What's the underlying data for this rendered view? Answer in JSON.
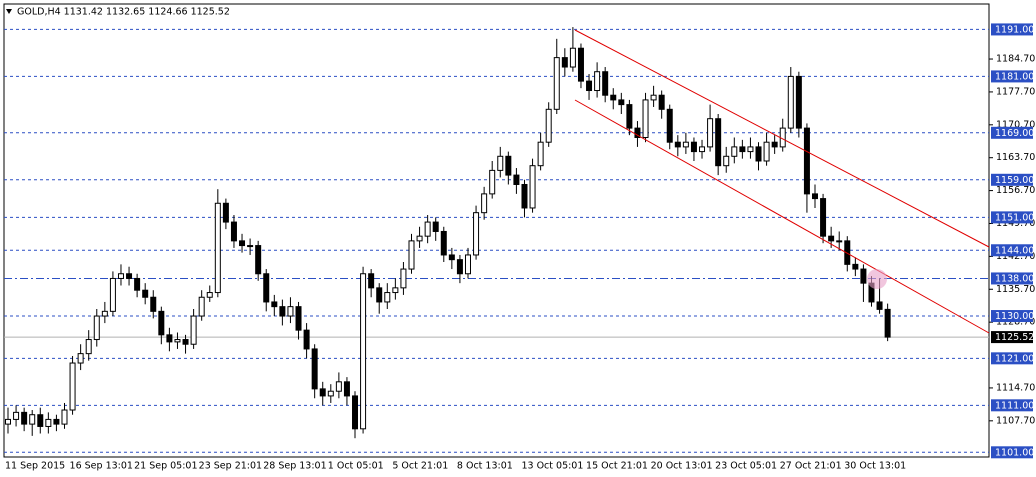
{
  "chart_data": {
    "type": "candlestick",
    "title": "GOLD,H4  1131.42 1132.65 1124.66 1125.52",
    "categories": [
      "11 Sep 2015",
      null,
      null,
      null,
      null,
      null,
      null,
      null,
      "16 Sep 13:01",
      null,
      null,
      null,
      null,
      null,
      null,
      null,
      "21 Sep 05:01",
      null,
      null,
      null,
      null,
      null,
      null,
      null,
      "23 Sep 21:01",
      null,
      null,
      null,
      null,
      null,
      null,
      null,
      "28 Sep 13:01",
      null,
      null,
      null,
      null,
      null,
      null,
      null,
      "1 Oct 05:01",
      null,
      null,
      null,
      null,
      null,
      null,
      null,
      "5 Oct 21:01",
      null,
      null,
      null,
      null,
      null,
      null,
      null,
      "8 Oct 13:01",
      null,
      null,
      null,
      null,
      null,
      null,
      null,
      "13 Oct 05:01",
      null,
      null,
      null,
      null,
      null,
      null,
      null,
      "15 Oct 21:01",
      null,
      null,
      null,
      null,
      null,
      null,
      null,
      "20 Oct 13:01",
      null,
      null,
      null,
      null,
      null,
      null,
      null,
      "23 Oct 05:01",
      null,
      null,
      null,
      null,
      null,
      null,
      null,
      "27 Oct 21:01",
      null,
      null,
      null,
      null,
      null,
      null,
      null,
      "30 Oct 13:01",
      null,
      null,
      null,
      null,
      null
    ],
    "open": [
      1107,
      1108,
      1109.5,
      1107,
      1109,
      1106.5,
      1108,
      1107,
      1110,
      1120,
      1122,
      1125,
      1130,
      1131,
      1138,
      1139,
      1138,
      1135.5,
      1134,
      1131,
      1126,
      1124.5,
      1125,
      1124,
      1130,
      1134,
      1135,
      1154,
      1150,
      1146,
      1145,
      1145,
      1139,
      1133,
      1132,
      1130,
      1132,
      1127,
      1123,
      1114.5,
      1113,
      1114,
      1116,
      1113,
      1106,
      1139,
      1136,
      1133,
      1135,
      1136,
      1140,
      1146,
      1147,
      1150,
      1148,
      1143,
      1142,
      1139,
      1143,
      1152,
      1156,
      1161,
      1164,
      1160,
      1158,
      1153,
      1162,
      1167,
      1174,
      1185,
      1183,
      1187,
      1180,
      1178,
      1182,
      1177,
      1176,
      1175,
      1170,
      1168,
      1176,
      1177,
      1174,
      1167,
      1166,
      1167,
      1165,
      1166,
      1172,
      1162,
      1164,
      1166,
      1165,
      1166,
      1163,
      1167,
      1166,
      1170,
      1181,
      1170,
      1156,
      1155,
      1147,
      1146,
      1146,
      1141,
      1140,
      1137,
      1133,
      1131.42
    ],
    "high": [
      1110.5,
      1111,
      1110.5,
      1110,
      1110.5,
      1109.5,
      1109,
      1111.5,
      1121.5,
      1124,
      1127,
      1131.5,
      1133,
      1139.5,
      1141,
      1140.5,
      1139,
      1137,
      1135.5,
      1132,
      1127.5,
      1126.5,
      1126,
      1131.5,
      1135.5,
      1136.5,
      1157,
      1155,
      1151.5,
      1147.5,
      1146.5,
      1146,
      1140,
      1134.5,
      1133.5,
      1134,
      1133,
      1128.5,
      1124,
      1116,
      1115.5,
      1118,
      1117,
      1114,
      1140.5,
      1140,
      1137,
      1137,
      1138,
      1141.5,
      1147.5,
      1149,
      1151.5,
      1151,
      1149,
      1144.5,
      1143,
      1144.5,
      1153.5,
      1157.5,
      1163,
      1166,
      1165,
      1161.5,
      1159,
      1163.5,
      1169,
      1175.5,
      1189,
      1187,
      1191.5,
      1188,
      1181.5,
      1184,
      1183,
      1178.5,
      1177.5,
      1176,
      1171.5,
      1177.5,
      1179,
      1178,
      1175,
      1168.5,
      1169,
      1168,
      1167.5,
      1175,
      1173,
      1166,
      1168,
      1167.5,
      1168,
      1167,
      1169,
      1168.5,
      1172,
      1183,
      1182,
      1171,
      1158,
      1156,
      1149,
      1148,
      1147,
      1142.5,
      1141,
      1138.5,
      1138,
      1132.65
    ],
    "low": [
      1105,
      1106.5,
      1105.5,
      1104.5,
      1105,
      1105,
      1105.5,
      1106,
      1109,
      1118.5,
      1120.5,
      1123.5,
      1128.5,
      1130,
      1136.5,
      1136.5,
      1134,
      1132.5,
      1129.5,
      1124,
      1122.5,
      1123,
      1122,
      1123,
      1129,
      1133,
      1134,
      1148.5,
      1144.5,
      1143.5,
      1143,
      1137.5,
      1131,
      1130,
      1128,
      1128.5,
      1125,
      1121,
      1112.5,
      1111,
      1111.5,
      1112.5,
      1111,
      1104,
      1105,
      1134,
      1130.5,
      1131.5,
      1133.5,
      1134.5,
      1139,
      1144.5,
      1145.5,
      1146,
      1141.5,
      1140,
      1137,
      1138,
      1142,
      1150.5,
      1155,
      1159.5,
      1158,
      1156,
      1151,
      1152,
      1161,
      1166,
      1173,
      1181,
      1182,
      1178.5,
      1176,
      1176.5,
      1175.5,
      1174,
      1173,
      1168.5,
      1166,
      1167,
      1174.5,
      1172,
      1165.5,
      1164,
      1164.5,
      1163,
      1163.5,
      1165,
      1160,
      1160.5,
      1162.5,
      1163.5,
      1163.5,
      1161,
      1162,
      1164.5,
      1165,
      1169,
      1168,
      1152,
      1153,
      1145.5,
      1144.5,
      1144,
      1139.5,
      1138.5,
      1133,
      1132,
      1130.5,
      1124.66
    ],
    "close": [
      1108,
      1109.5,
      1107,
      1109,
      1106.5,
      1108,
      1107,
      1110,
      1120,
      1122,
      1125,
      1130,
      1131,
      1138,
      1139,
      1138,
      1135.5,
      1134,
      1131,
      1126,
      1124.5,
      1125,
      1124,
      1130,
      1134,
      1135,
      1154,
      1150,
      1146,
      1145,
      1145,
      1139,
      1133,
      1132,
      1130,
      1132,
      1127,
      1123,
      1114.5,
      1113,
      1114,
      1116,
      1113,
      1106,
      1139,
      1136,
      1133,
      1135,
      1136,
      1140,
      1146,
      1147,
      1150,
      1148,
      1143,
      1142,
      1139,
      1143,
      1152,
      1156,
      1161,
      1164,
      1160,
      1158,
      1153,
      1162,
      1167,
      1174,
      1185,
      1183,
      1187,
      1180,
      1178,
      1182,
      1177,
      1176,
      1175,
      1170,
      1168,
      1176,
      1177,
      1174,
      1167,
      1166,
      1167,
      1165,
      1166,
      1172,
      1162,
      1164,
      1166,
      1165,
      1166,
      1163,
      1167,
      1166,
      1170,
      1181,
      1170,
      1156,
      1155,
      1147,
      1146,
      1146,
      1141,
      1140,
      1137,
      1133,
      1131.42,
      1125.52
    ],
    "ylim": [
      1100,
      1196.2
    ],
    "yticks": [
      {
        "value": 1107.7,
        "label": "1107.70"
      },
      {
        "value": 1114.7,
        "label": "1114.70"
      },
      {
        "value": 1128.7,
        "label": "1128.70"
      },
      {
        "value": 1135.7,
        "label": "1135.70"
      },
      {
        "value": 1142.7,
        "label": "1142.70"
      },
      {
        "value": 1149.7,
        "label": "1149.70"
      },
      {
        "value": 1156.7,
        "label": "1156.70"
      },
      {
        "value": 1163.7,
        "label": "1163.70"
      },
      {
        "value": 1170.7,
        "label": "1170.70"
      },
      {
        "value": 1177.7,
        "label": "1177.70"
      },
      {
        "value": 1184.7,
        "label": "1184.70"
      }
    ],
    "levels": [
      {
        "value": 1191,
        "label": "1191.00"
      },
      {
        "value": 1181,
        "label": "1181.00"
      },
      {
        "value": 1169,
        "label": "1169.00"
      },
      {
        "value": 1159,
        "label": "1159.00"
      },
      {
        "value": 1151,
        "label": "1151.00"
      },
      {
        "value": 1144,
        "label": "1144.00"
      },
      {
        "value": 1138,
        "label": "1138.00"
      },
      {
        "value": 1130,
        "label": "1130.00"
      },
      {
        "value": 1121,
        "label": "1121.00"
      },
      {
        "value": 1111,
        "label": "1111.00"
      },
      {
        "value": 1101,
        "label": "1101.00"
      }
    ],
    "current_price": {
      "value": 1125.52,
      "label": "1125.52"
    },
    "level_color": "#2b4fc4",
    "bull_color": "#ffffff",
    "bear_color": "#000000"
  }
}
